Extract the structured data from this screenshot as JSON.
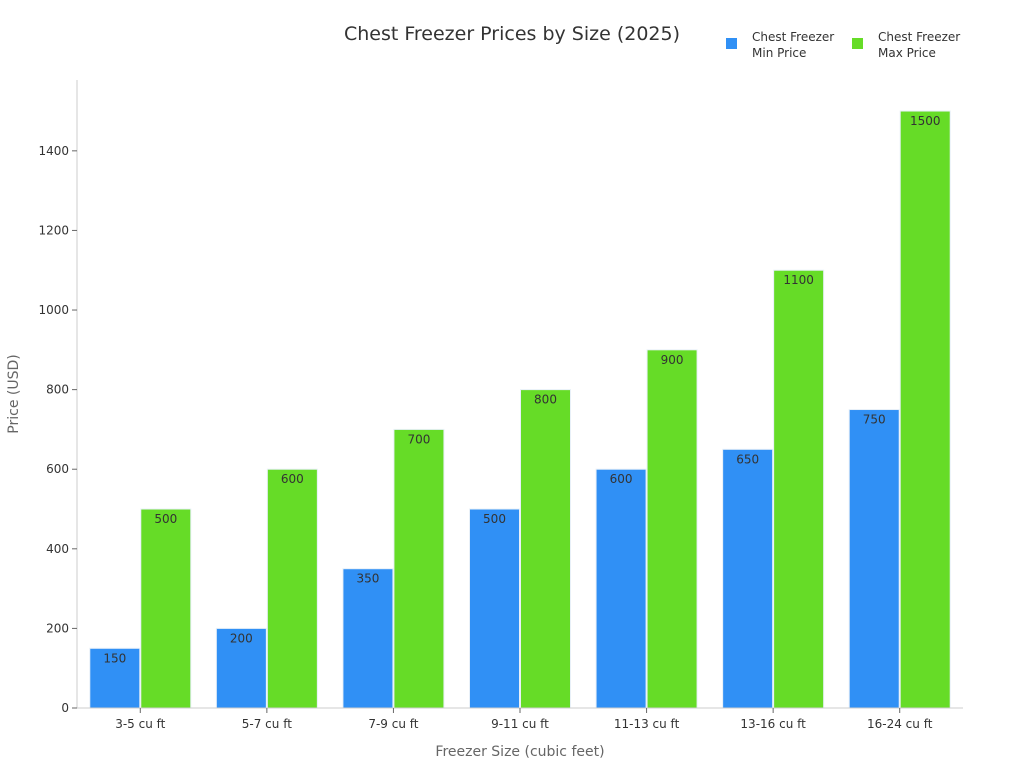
{
  "chart_data": {
    "type": "bar",
    "title": "Chest Freezer Prices by Size (2025)",
    "xlabel": "Freezer Size (cubic feet)",
    "ylabel": "Price (USD)",
    "categories": [
      "3-5 cu ft",
      "5-7 cu ft",
      "7-9 cu ft",
      "9-11 cu ft",
      "11-13 cu ft",
      "13-16 cu ft",
      "16-24 cu ft"
    ],
    "series": [
      {
        "name": "Chest Freezer Min Price",
        "legend_lines": [
          "Chest Freezer",
          "Min Price"
        ],
        "color": "#3090F5",
        "values": [
          150,
          200,
          350,
          500,
          600,
          650,
          750
        ]
      },
      {
        "name": "Chest Freezer Max Price",
        "legend_lines": [
          "Chest Freezer",
          "Max Price"
        ],
        "color": "#66DC27",
        "values": [
          500,
          600,
          700,
          800,
          900,
          1100,
          1500
        ]
      }
    ],
    "yticks": [
      0,
      200,
      400,
      600,
      800,
      1000,
      1200,
      1400
    ],
    "ylim": [
      0,
      1578
    ],
    "grid": false,
    "legend_placement": "top-right",
    "data_labels": true
  }
}
